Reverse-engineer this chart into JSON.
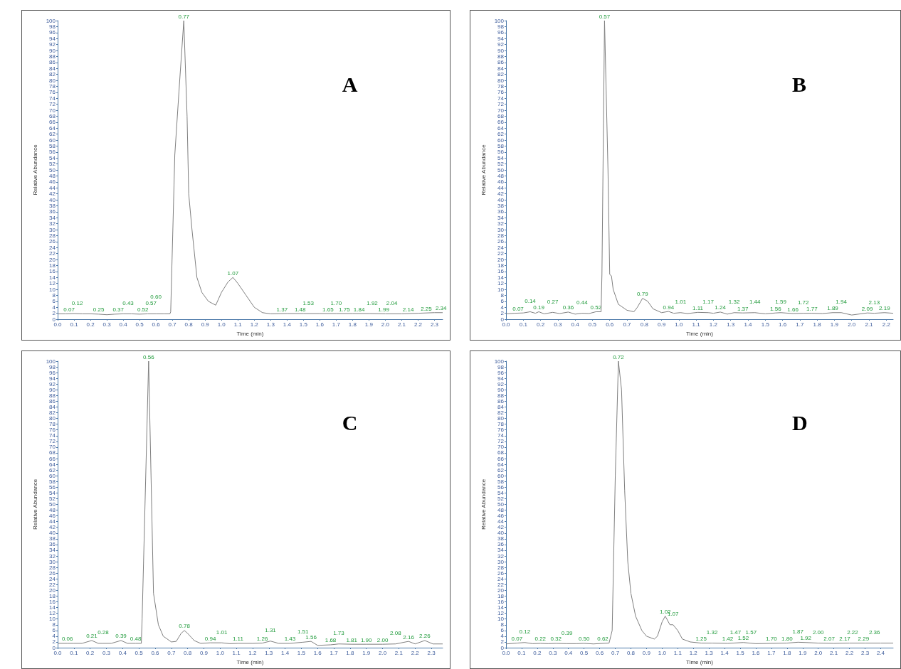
{
  "chart_data": [
    {
      "type": "line",
      "title": "A",
      "xlabel": "Time (min)",
      "ylabel": "Relative Abundance",
      "color": "#7f7f7f",
      "marker": "none",
      "grid": false,
      "x": [
        0,
        0.05,
        0.1,
        0.15,
        0.2,
        0.25,
        0.3,
        0.35,
        0.4,
        0.45,
        0.5,
        0.55,
        0.6,
        0.65,
        0.685,
        0.69,
        0.715,
        0.745,
        0.77,
        0.79,
        0.8,
        0.82,
        0.85,
        0.88,
        0.92,
        0.965,
        1.0,
        1.04,
        1.07,
        1.1,
        1.15,
        1.2,
        1.25,
        1.3,
        1.4,
        1.5,
        1.6,
        1.7,
        1.8,
        1.9,
        2.0,
        2.1,
        2.2,
        2.3,
        2.35
      ],
      "values": [
        1.8,
        1.8,
        1.9,
        1.8,
        1.8,
        1.7,
        1.5,
        1.7,
        1.8,
        1.8,
        1.7,
        1.8,
        1.8,
        1.8,
        1.8,
        2.5,
        55,
        80,
        100,
        68,
        42,
        30,
        14,
        9,
        6,
        4.7,
        9,
        12.5,
        14,
        12,
        8,
        4,
        2.2,
        1.8,
        1.9,
        1.9,
        1.9,
        1.9,
        1.9,
        1.9,
        1.8,
        1.8,
        2.0,
        2.2,
        2.2
      ],
      "xlim": [
        0,
        2.35
      ],
      "xticks": [
        {
          "value": 0,
          "label": "0.0"
        },
        0.1,
        0.2,
        0.3,
        0.4,
        0.5,
        0.6,
        0.7,
        0.8,
        0.9,
        {
          "value": 1,
          "label": "1.0"
        },
        1.1,
        1.2,
        1.3,
        1.4,
        1.5,
        1.6,
        1.7,
        1.8,
        1.9,
        {
          "value": 2,
          "label": "2.0"
        },
        2.1,
        2.2,
        2.3
      ],
      "ylim": [
        0,
        100
      ],
      "yticks": [
        0,
        2,
        4,
        6,
        8,
        10,
        12,
        14,
        16,
        18,
        20,
        22,
        24,
        26,
        28,
        30,
        32,
        34,
        36,
        38,
        40,
        42,
        44,
        46,
        48,
        50,
        52,
        54,
        56,
        58,
        60,
        62,
        64,
        66,
        68,
        70,
        72,
        74,
        76,
        78,
        80,
        82,
        84,
        86,
        88,
        90,
        92,
        94,
        96,
        98,
        100
      ],
      "annotations": [
        {
          "text": "0.07",
          "x": 0.07,
          "y": 1.8
        },
        {
          "text": "0.12",
          "x": 0.12,
          "y": 1.9
        },
        {
          "text": "0.25",
          "x": 0.25,
          "y": 1.7
        },
        {
          "text": "0.37",
          "x": 0.37,
          "y": 1.7
        },
        {
          "text": "0.43",
          "x": 0.43,
          "y": 1.8
        },
        {
          "text": "0.52",
          "x": 0.52,
          "y": 1.7
        },
        {
          "text": "0.57",
          "x": 0.57,
          "y": 1.8
        },
        {
          "text": "0.60",
          "x": 0.6,
          "y": 1.8
        },
        {
          "text": "0.77",
          "x": 0.77,
          "y": 100
        },
        {
          "text": "1.07",
          "x": 1.07,
          "y": 14
        },
        {
          "text": "1.37",
          "x": 1.37,
          "y": 1.9
        },
        {
          "text": "1.48",
          "x": 1.48,
          "y": 1.9
        },
        {
          "text": "1.53",
          "x": 1.53,
          "y": 1.9
        },
        {
          "text": "1.65",
          "x": 1.65,
          "y": 1.9
        },
        {
          "text": "1.70",
          "x": 1.7,
          "y": 1.9
        },
        {
          "text": "1.75",
          "x": 1.75,
          "y": 1.9
        },
        {
          "text": "1.84",
          "x": 1.84,
          "y": 1.9
        },
        {
          "text": "1.92",
          "x": 1.92,
          "y": 1.9
        },
        {
          "text": "1.99",
          "x": 1.99,
          "y": 1.8
        },
        {
          "text": "2.04",
          "x": 2.04,
          "y": 1.8
        },
        {
          "text": "2.14",
          "x": 2.14,
          "y": 1.8
        },
        {
          "text": "2.25",
          "x": 2.25,
          "y": 2.1
        },
        {
          "text": "2.34",
          "x": 2.34,
          "y": 2.2
        }
      ]
    },
    {
      "type": "line",
      "title": "B",
      "xlabel": "Time (min)",
      "ylabel": "Relative Abundance",
      "color": "#7f7f7f",
      "marker": "none",
      "grid": false,
      "x": [
        0,
        0.05,
        0.1,
        0.14,
        0.17,
        0.19,
        0.22,
        0.27,
        0.31,
        0.36,
        0.4,
        0.44,
        0.48,
        0.52,
        0.55,
        0.555,
        0.57,
        0.59,
        0.6,
        0.61,
        0.62,
        0.65,
        0.7,
        0.74,
        0.76,
        0.79,
        0.82,
        0.85,
        0.9,
        0.94,
        0.97,
        1.01,
        1.05,
        1.11,
        1.17,
        1.2,
        1.24,
        1.28,
        1.32,
        1.37,
        1.44,
        1.5,
        1.56,
        1.59,
        1.66,
        1.72,
        1.77,
        1.83,
        1.89,
        1.94,
        2.0,
        2.09,
        2.13,
        2.19,
        2.24
      ],
      "values": [
        1.8,
        2.0,
        2.1,
        2.5,
        2.0,
        2.5,
        1.8,
        2.3,
        1.9,
        2.4,
        1.7,
        2.0,
        1.9,
        2.5,
        2.5,
        15,
        100,
        50,
        15,
        14.5,
        10,
        5,
        3,
        2.5,
        4,
        7,
        6,
        3.5,
        2.2,
        2.6,
        2.0,
        2.2,
        1.9,
        2.3,
        2.2,
        2.0,
        2.4,
        1.7,
        2.2,
        2.1,
        2.2,
        1.8,
        2.1,
        2.2,
        1.9,
        2.0,
        2.0,
        1.9,
        2.2,
        2.2,
        1.4,
        2.1,
        2.0,
        2.2,
        2.0
      ],
      "xlim": [
        0,
        2.24
      ],
      "xticks": [
        {
          "value": 0,
          "label": "0.0"
        },
        0.1,
        0.2,
        0.3,
        0.4,
        0.5,
        0.6,
        0.7,
        0.8,
        0.9,
        {
          "value": 1,
          "label": "1.0"
        },
        1.1,
        1.2,
        1.3,
        1.4,
        1.5,
        1.6,
        1.7,
        1.8,
        1.9,
        {
          "value": 2,
          "label": "2.0"
        },
        2.1,
        2.2
      ],
      "ylim": [
        0,
        100
      ],
      "yticks": [
        0,
        2,
        4,
        6,
        8,
        10,
        12,
        14,
        16,
        18,
        20,
        22,
        24,
        26,
        28,
        30,
        32,
        34,
        36,
        38,
        40,
        42,
        44,
        46,
        48,
        50,
        52,
        54,
        56,
        58,
        60,
        62,
        64,
        66,
        68,
        70,
        72,
        74,
        76,
        78,
        80,
        82,
        84,
        86,
        88,
        90,
        92,
        94,
        96,
        98,
        100
      ],
      "annotations": [
        {
          "text": "0.07",
          "x": 0.07,
          "y": 2.0
        },
        {
          "text": "0.14",
          "x": 0.14,
          "y": 2.5
        },
        {
          "text": "0.19",
          "x": 0.19,
          "y": 2.5
        },
        {
          "text": "0.27",
          "x": 0.27,
          "y": 2.3
        },
        {
          "text": "0.36",
          "x": 0.36,
          "y": 2.4
        },
        {
          "text": "0.44",
          "x": 0.44,
          "y": 2.0
        },
        {
          "text": "0.52",
          "x": 0.52,
          "y": 2.5
        },
        {
          "text": "0.57",
          "x": 0.57,
          "y": 100
        },
        {
          "text": "0.79",
          "x": 0.79,
          "y": 7
        },
        {
          "text": "0.94",
          "x": 0.94,
          "y": 2.6
        },
        {
          "text": "1.01",
          "x": 1.01,
          "y": 2.2
        },
        {
          "text": "1.11",
          "x": 1.11,
          "y": 2.3
        },
        {
          "text": "1.17",
          "x": 1.17,
          "y": 2.2
        },
        {
          "text": "1.24",
          "x": 1.24,
          "y": 2.4
        },
        {
          "text": "1.32",
          "x": 1.32,
          "y": 2.2
        },
        {
          "text": "1.37",
          "x": 1.37,
          "y": 2.1
        },
        {
          "text": "1.44",
          "x": 1.44,
          "y": 2.2
        },
        {
          "text": "1.56",
          "x": 1.56,
          "y": 2.1
        },
        {
          "text": "1.59",
          "x": 1.59,
          "y": 2.2
        },
        {
          "text": "1.66",
          "x": 1.66,
          "y": 1.9
        },
        {
          "text": "1.72",
          "x": 1.72,
          "y": 2.0
        },
        {
          "text": "1.77",
          "x": 1.77,
          "y": 2.0
        },
        {
          "text": "1.89",
          "x": 1.89,
          "y": 2.2
        },
        {
          "text": "1.94",
          "x": 1.94,
          "y": 2.2
        },
        {
          "text": "2.09",
          "x": 2.09,
          "y": 2.1
        },
        {
          "text": "2.13",
          "x": 2.13,
          "y": 2.0
        },
        {
          "text": "2.19",
          "x": 2.19,
          "y": 2.2
        }
      ]
    },
    {
      "type": "line",
      "title": "C",
      "xlabel": "Time (min)",
      "ylabel": "Relative Abundance",
      "color": "#7f7f7f",
      "marker": "none",
      "grid": false,
      "x": [
        0,
        0.06,
        0.1,
        0.15,
        0.21,
        0.25,
        0.28,
        0.33,
        0.39,
        0.43,
        0.48,
        0.515,
        0.52,
        0.56,
        0.59,
        0.62,
        0.65,
        0.7,
        0.73,
        0.76,
        0.78,
        0.8,
        0.84,
        0.88,
        0.94,
        1.01,
        1.06,
        1.11,
        1.2,
        1.26,
        1.31,
        1.36,
        1.43,
        1.51,
        1.56,
        1.6,
        1.68,
        1.73,
        1.81,
        1.9,
        2.0,
        2.08,
        2.16,
        2.2,
        2.26,
        2.31,
        2.37
      ],
      "values": [
        1.5,
        1.5,
        1.5,
        1.5,
        2.5,
        1.5,
        1.5,
        1.5,
        2.5,
        1.5,
        1.5,
        1.5,
        10,
        100,
        19,
        8,
        4,
        2,
        2.2,
        5,
        6,
        5,
        2.5,
        1.5,
        1.7,
        1.7,
        1.4,
        1.5,
        1.5,
        1.6,
        2.3,
        1.5,
        1.5,
        1.9,
        2.2,
        0.8,
        1.0,
        1.3,
        1.2,
        1.2,
        1.2,
        1.3,
        2.2,
        1.3,
        2.5,
        1.3,
        1.3
      ],
      "xlim": [
        0,
        2.37
      ],
      "xticks": [
        {
          "value": 0,
          "label": "0.0"
        },
        0.1,
        0.2,
        0.3,
        0.4,
        0.5,
        0.6,
        0.7,
        0.8,
        0.9,
        {
          "value": 1,
          "label": "1.0"
        },
        1.1,
        1.2,
        1.3,
        1.4,
        1.5,
        1.6,
        1.7,
        1.8,
        1.9,
        {
          "value": 2,
          "label": "2.0"
        },
        2.1,
        2.2,
        2.3
      ],
      "ylim": [
        0,
        100
      ],
      "yticks": [
        0,
        2,
        4,
        6,
        8,
        10,
        12,
        14,
        16,
        18,
        20,
        22,
        24,
        26,
        28,
        30,
        32,
        34,
        36,
        38,
        40,
        42,
        44,
        46,
        48,
        50,
        52,
        54,
        56,
        58,
        60,
        62,
        64,
        66,
        68,
        70,
        72,
        74,
        76,
        78,
        80,
        82,
        84,
        86,
        88,
        90,
        92,
        94,
        96,
        98,
        100
      ],
      "annotations": [
        {
          "text": "0.06",
          "x": 0.06,
          "y": 1.5
        },
        {
          "text": "0.21",
          "x": 0.21,
          "y": 2.5
        },
        {
          "text": "0.28",
          "x": 0.28,
          "y": 1.5
        },
        {
          "text": "0.39",
          "x": 0.39,
          "y": 2.5
        },
        {
          "text": "0.48",
          "x": 0.48,
          "y": 1.5
        },
        {
          "text": "0.56",
          "x": 0.56,
          "y": 100
        },
        {
          "text": "0.78",
          "x": 0.78,
          "y": 6
        },
        {
          "text": "0.94",
          "x": 0.94,
          "y": 1.7
        },
        {
          "text": "1.01",
          "x": 1.01,
          "y": 1.7
        },
        {
          "text": "1.11",
          "x": 1.11,
          "y": 1.5
        },
        {
          "text": "1.26",
          "x": 1.26,
          "y": 1.6
        },
        {
          "text": "1.31",
          "x": 1.31,
          "y": 2.3
        },
        {
          "text": "1.43",
          "x": 1.43,
          "y": 1.5
        },
        {
          "text": "1.51",
          "x": 1.51,
          "y": 1.9
        },
        {
          "text": "1.56",
          "x": 1.56,
          "y": 2.2
        },
        {
          "text": "1.68",
          "x": 1.68,
          "y": 1.0
        },
        {
          "text": "1.73",
          "x": 1.73,
          "y": 1.3
        },
        {
          "text": "1.81",
          "x": 1.81,
          "y": 1.2
        },
        {
          "text": "1.90",
          "x": 1.9,
          "y": 1.2
        },
        {
          "text": "2.00",
          "x": 2.0,
          "y": 1.2
        },
        {
          "text": "2.08",
          "x": 2.08,
          "y": 1.3
        },
        {
          "text": "2.16",
          "x": 2.16,
          "y": 2.2
        },
        {
          "text": "2.26",
          "x": 2.26,
          "y": 2.5
        }
      ]
    },
    {
      "type": "line",
      "title": "D",
      "xlabel": "Time (min)",
      "ylabel": "Relative Abundance",
      "color": "#7f7f7f",
      "marker": "none",
      "grid": false,
      "x": [
        0,
        0.07,
        0.12,
        0.17,
        0.22,
        0.27,
        0.32,
        0.39,
        0.45,
        0.5,
        0.56,
        0.62,
        0.66,
        0.68,
        0.7,
        0.72,
        0.74,
        0.76,
        0.78,
        0.8,
        0.83,
        0.87,
        0.9,
        0.95,
        0.97,
        1.0,
        1.02,
        1.05,
        1.07,
        1.1,
        1.13,
        1.18,
        1.25,
        1.32,
        1.42,
        1.52,
        1.6,
        1.7,
        1.8,
        1.87,
        1.92,
        2.0,
        2.1,
        2.2,
        2.3,
        2.4,
        2.48
      ],
      "values": [
        1.3,
        1.6,
        1.8,
        1.4,
        1.5,
        1.4,
        1.5,
        1.4,
        1.4,
        1.5,
        1.3,
        1.5,
        1.6,
        6,
        60,
        100,
        90,
        55,
        30,
        19,
        11,
        6,
        4,
        3,
        4,
        9,
        11,
        8,
        8,
        6,
        3,
        2,
        1.6,
        1.6,
        1.5,
        1.8,
        1.4,
        1.5,
        1.6,
        1.9,
        1.8,
        1.6,
        1.5,
        1.6,
        1.6,
        1.6,
        1.6
      ],
      "xlim": [
        0,
        2.48
      ],
      "xticks": [
        {
          "value": 0,
          "label": "0.0"
        },
        0.1,
        0.2,
        0.3,
        0.4,
        0.5,
        0.6,
        0.7,
        0.8,
        0.9,
        {
          "value": 1,
          "label": "1.0"
        },
        1.1,
        1.2,
        1.3,
        1.4,
        1.5,
        1.6,
        1.7,
        1.8,
        1.9,
        {
          "value": 2,
          "label": "2.0"
        },
        2.1,
        2.2,
        2.3,
        2.4
      ],
      "ylim": [
        0,
        100
      ],
      "yticks": [
        0,
        2,
        4,
        6,
        8,
        10,
        12,
        14,
        16,
        18,
        20,
        22,
        24,
        26,
        28,
        30,
        32,
        34,
        36,
        38,
        40,
        42,
        44,
        46,
        48,
        50,
        52,
        54,
        56,
        58,
        60,
        62,
        64,
        66,
        68,
        70,
        72,
        74,
        76,
        78,
        80,
        82,
        84,
        86,
        88,
        90,
        92,
        94,
        96,
        98,
        100
      ],
      "annotations": [
        {
          "text": "0.07",
          "x": 0.07,
          "y": 1.6
        },
        {
          "text": "0.12",
          "x": 0.12,
          "y": 1.8
        },
        {
          "text": "0.22",
          "x": 0.22,
          "y": 1.5
        },
        {
          "text": "0.32",
          "x": 0.32,
          "y": 1.5
        },
        {
          "text": "0.39",
          "x": 0.39,
          "y": 1.4
        },
        {
          "text": "0.50",
          "x": 0.5,
          "y": 1.5
        },
        {
          "text": "0.62",
          "x": 0.62,
          "y": 1.5
        },
        {
          "text": "0.72",
          "x": 0.72,
          "y": 100
        },
        {
          "text": "1.02",
          "x": 1.02,
          "y": 11
        },
        {
          "text": "1.07",
          "x": 1.07,
          "y": 8
        },
        {
          "text": "1.25",
          "x": 1.25,
          "y": 1.6
        },
        {
          "text": "1.32",
          "x": 1.32,
          "y": 1.6
        },
        {
          "text": "1.42",
          "x": 1.42,
          "y": 1.5
        },
        {
          "text": "1.47",
          "x": 1.47,
          "y": 1.6
        },
        {
          "text": "1.52",
          "x": 1.52,
          "y": 1.8
        },
        {
          "text": "1.57",
          "x": 1.57,
          "y": 1.5
        },
        {
          "text": "1.70",
          "x": 1.7,
          "y": 1.5
        },
        {
          "text": "1.80",
          "x": 1.8,
          "y": 1.6
        },
        {
          "text": "1.87",
          "x": 1.87,
          "y": 1.9
        },
        {
          "text": "1.92",
          "x": 1.92,
          "y": 1.8
        },
        {
          "text": "2.00",
          "x": 2.0,
          "y": 1.6
        },
        {
          "text": "2.07",
          "x": 2.07,
          "y": 1.5
        },
        {
          "text": "2.17",
          "x": 2.17,
          "y": 1.5
        },
        {
          "text": "2.22",
          "x": 2.22,
          "y": 1.6
        },
        {
          "text": "2.29",
          "x": 2.29,
          "y": 1.6
        },
        {
          "text": "2.36",
          "x": 2.36,
          "y": 1.6
        }
      ]
    }
  ]
}
